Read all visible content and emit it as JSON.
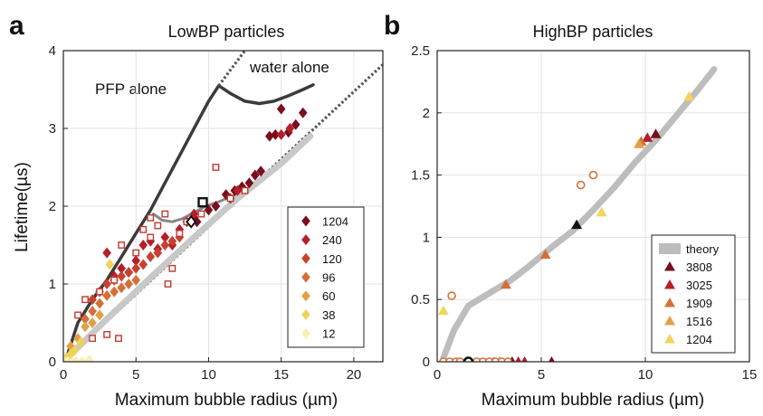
{
  "chart_data": [
    {
      "panel": "a",
      "type": "scatter",
      "title": "LowBP particles",
      "xlabel": "Maximum bubble radius (µm)",
      "ylabel": "Lifetime(µs)",
      "xlim": [
        0,
        22
      ],
      "ylim": [
        0,
        4
      ],
      "xticks": [
        0,
        5,
        10,
        15,
        20
      ],
      "yticks": [
        0,
        1,
        2,
        3,
        4
      ],
      "grid": true,
      "legend_position": "bottom-right",
      "annotations": [
        "PFP alone",
        "water alone"
      ],
      "lines": [
        {
          "name": "PFP alone",
          "style": "solid",
          "color": "#3b3b3b",
          "x": [
            0.3,
            1,
            2,
            3,
            4,
            5,
            6,
            7,
            8,
            9,
            10,
            10.7,
            11.5,
            12.5,
            13.5,
            14.5,
            15.5,
            16.5,
            17.2
          ],
          "y": [
            0.1,
            0.5,
            0.8,
            1.05,
            1.35,
            1.65,
            1.95,
            2.3,
            2.65,
            3.0,
            3.35,
            3.55,
            3.45,
            3.35,
            3.32,
            3.35,
            3.42,
            3.5,
            3.56
          ]
        },
        {
          "name": "PFP alone extrapolation",
          "style": "dotted",
          "color": "#555555",
          "x": [
            10.7,
            12.7
          ],
          "y": [
            3.55,
            4.05
          ]
        },
        {
          "name": "water alone",
          "style": "dotted",
          "color": "#555555",
          "x": [
            0,
            22
          ],
          "y": [
            0,
            3.82
          ]
        },
        {
          "name": "mixture",
          "style": "solid",
          "color": "#888888",
          "x": [
            6.2,
            6.8,
            7.5,
            8.2,
            9.0,
            9.8,
            10.6,
            11.5,
            12.5
          ],
          "y": [
            1.9,
            1.82,
            1.8,
            1.84,
            1.92,
            2.0,
            2.05,
            2.12,
            2.2
          ]
        },
        {
          "name": "theory-low",
          "style": "solid",
          "color": "#c8c8c8",
          "x": [
            0,
            3,
            6,
            9,
            12,
            15,
            17
          ],
          "y": [
            0,
            0.55,
            1.08,
            1.6,
            2.1,
            2.55,
            2.9
          ]
        }
      ],
      "series": [
        {
          "name": "1204",
          "color": "#7a0e1e",
          "marker": "diamond",
          "x": [
            9.0,
            10.5,
            11.2,
            11.8,
            12.3,
            12.8,
            13.2,
            13.6,
            14.2,
            14.6,
            15.0,
            15.5,
            16.0,
            16.5,
            10.0,
            9.2
          ],
          "y": [
            1.85,
            2.0,
            2.15,
            2.2,
            2.25,
            2.3,
            2.4,
            2.45,
            2.9,
            2.92,
            3.25,
            2.95,
            3.05,
            3.2,
            1.95,
            1.8
          ]
        },
        {
          "name": "240",
          "color": "#b51e2a",
          "marker": "diamond",
          "x": [
            3.0,
            3.5,
            4.0,
            4.5,
            5.0,
            5.5,
            6.0,
            6.5,
            7.0,
            7.5,
            8.0,
            8.5,
            9.0,
            11.5,
            12.0,
            15.0,
            15.6
          ],
          "y": [
            1.4,
            1.1,
            1.2,
            1.15,
            1.3,
            1.5,
            1.55,
            1.45,
            1.6,
            1.5,
            1.7,
            1.8,
            1.9,
            2.1,
            2.2,
            2.92,
            3.0
          ]
        },
        {
          "name": "120",
          "color": "#c8412f",
          "marker": "diamond",
          "x": [
            2.0,
            2.5,
            3.0,
            3.5,
            4.0,
            4.5,
            5.0,
            5.5,
            6.0,
            6.5,
            7.0,
            7.5,
            8.0
          ],
          "y": [
            0.8,
            0.9,
            1.0,
            1.05,
            1.1,
            1.15,
            1.2,
            1.25,
            1.35,
            1.4,
            1.5,
            1.55,
            1.6
          ]
        },
        {
          "name": "96",
          "color": "#d3703a",
          "marker": "diamond",
          "x": [
            1.5,
            2.0,
            2.5,
            3.0,
            3.5,
            4.0,
            4.5,
            5.0
          ],
          "y": [
            0.55,
            0.65,
            0.75,
            0.85,
            0.9,
            0.95,
            1.0,
            1.05
          ]
        },
        {
          "name": "60",
          "color": "#e0a047",
          "marker": "diamond",
          "x": [
            0.5,
            1.0,
            1.5,
            2.0,
            2.5
          ],
          "y": [
            0.2,
            0.3,
            0.45,
            0.5,
            0.6
          ]
        },
        {
          "name": "38",
          "color": "#f0d25a",
          "marker": "diamond",
          "x": [
            0.2,
            0.5,
            0.8,
            1.2,
            3.2
          ],
          "y": [
            0.05,
            0.1,
            0.15,
            0.25,
            1.25
          ]
        },
        {
          "name": "12",
          "color": "#f6f0b2",
          "marker": "diamond",
          "x": [
            0.1,
            0.3,
            0.6,
            0.9,
            1.3,
            1.8
          ],
          "y": [
            0.0,
            0.0,
            0.0,
            0.0,
            0.0,
            0.02
          ]
        },
        {
          "name": "open squares",
          "color": "#c0392b",
          "marker": "square-open",
          "x": [
            1.0,
            1.5,
            2.0,
            2.5,
            3.0,
            3.5,
            4.0,
            5.0,
            5.5,
            6.0,
            6.5,
            7.0,
            7.5,
            8.0,
            8.5,
            9.5,
            10.5,
            11.5,
            12.5,
            7.2,
            6.0,
            3.8
          ],
          "y": [
            0.6,
            0.8,
            0.3,
            0.9,
            0.35,
            1.05,
            1.5,
            1.4,
            1.7,
            1.6,
            1.75,
            1.9,
            1.2,
            1.65,
            1.8,
            1.9,
            2.5,
            2.1,
            2.2,
            1.0,
            1.85,
            0.3
          ]
        },
        {
          "name": "highlight square",
          "color": "#111111",
          "marker": "square-bold",
          "x": [
            9.6
          ],
          "y": [
            2.05
          ]
        },
        {
          "name": "highlight diamond",
          "color": "#111111",
          "marker": "diamond-open-black",
          "x": [
            8.8
          ],
          "y": [
            1.8
          ]
        }
      ],
      "legend": [
        "1204",
        "240",
        "120",
        "96",
        "60",
        "38",
        "12"
      ]
    },
    {
      "panel": "b",
      "type": "scatter",
      "title": "HighBP particles",
      "xlabel": "Maximum bubble radius (µm)",
      "ylabel": "",
      "xlim": [
        0,
        15
      ],
      "ylim": [
        0,
        2.5
      ],
      "xticks": [
        0,
        5,
        10,
        15
      ],
      "yticks": [
        0,
        0.5,
        1,
        1.5,
        2,
        2.5
      ],
      "grid": true,
      "legend_position": "bottom-right",
      "lines": [
        {
          "name": "theory",
          "style": "band",
          "color": "#bdbdbd",
          "x": [
            0.3,
            0.8,
            1.5,
            2.5,
            3.5,
            4.5,
            5.5,
            6.5,
            7.5,
            8.5,
            9.5,
            10.5,
            11.5,
            12.5,
            13.3
          ],
          "y": [
            0.03,
            0.25,
            0.45,
            0.55,
            0.65,
            0.78,
            0.92,
            1.05,
            1.22,
            1.4,
            1.6,
            1.78,
            1.98,
            2.18,
            2.35
          ]
        }
      ],
      "series": [
        {
          "name": "3808",
          "color": "#7a0e1e",
          "marker": "triangle",
          "x": [
            3.6,
            5.5,
            10.5
          ],
          "y": [
            0.0,
            0.0,
            1.83
          ]
        },
        {
          "name": "3025",
          "color": "#b51e2a",
          "marker": "triangle",
          "x": [
            3.9,
            4.2,
            10.1
          ],
          "y": [
            0.0,
            0.0,
            1.8
          ]
        },
        {
          "name": "1909",
          "color": "#d3703a",
          "marker": "triangle",
          "x": [
            3.3,
            5.2,
            9.8
          ],
          "y": [
            0.62,
            0.86,
            1.77
          ]
        },
        {
          "name": "1516",
          "color": "#e0a047",
          "marker": "triangle",
          "x": [
            2.7,
            3.0,
            9.7
          ],
          "y": [
            0.0,
            0.0,
            1.75
          ]
        },
        {
          "name": "1204",
          "color": "#f4d35e",
          "marker": "triangle",
          "x": [
            0.3,
            7.9,
            12.1
          ],
          "y": [
            0.41,
            1.2,
            2.13
          ]
        },
        {
          "name": "highlight triangle",
          "color": "#111111",
          "marker": "triangle",
          "x": [
            6.7
          ],
          "y": [
            1.1
          ]
        },
        {
          "name": "open circles",
          "color": "#d3703a",
          "marker": "circle-open",
          "x": [
            0.3,
            0.6,
            0.9,
            1.1,
            1.5,
            1.9,
            2.2,
            2.5,
            2.8,
            3.1,
            3.4,
            0.7,
            6.9,
            7.5
          ],
          "y": [
            0.0,
            0.0,
            0.0,
            0.0,
            0.0,
            0.0,
            0.0,
            0.0,
            0.0,
            0.0,
            0.0,
            0.53,
            1.42,
            1.5
          ]
        },
        {
          "name": "highlight circle",
          "color": "#111111",
          "marker": "circle-bold",
          "x": [
            1.5
          ],
          "y": [
            0.0
          ]
        }
      ],
      "legend": [
        "theory",
        "3808",
        "3025",
        "1909",
        "1516",
        "1204"
      ]
    }
  ],
  "panels": {
    "a": {
      "letter": "a",
      "title": "LowBP particles",
      "xlabel": "Maximum bubble radius (µm)",
      "ylabel": "Lifetime(µs)",
      "label_pfp": "PFP alone",
      "label_water": "water alone"
    },
    "b": {
      "letter": "b",
      "title": "HighBP particles",
      "xlabel": "Maximum bubble radius (µm)"
    }
  },
  "legend_a": [
    {
      "label": "1204",
      "color": "#7a0e1e",
      "marker": "diamond"
    },
    {
      "label": "240",
      "color": "#b51e2a",
      "marker": "diamond"
    },
    {
      "label": "120",
      "color": "#c8412f",
      "marker": "diamond"
    },
    {
      "label": "96",
      "color": "#d3703a",
      "marker": "diamond"
    },
    {
      "label": "60",
      "color": "#e0a047",
      "marker": "diamond"
    },
    {
      "label": "38",
      "color": "#f0d25a",
      "marker": "diamond"
    },
    {
      "label": "12",
      "color": "#f6f0b2",
      "marker": "diamond"
    }
  ],
  "legend_b": [
    {
      "label": "theory",
      "color": "#bdbdbd",
      "marker": "band"
    },
    {
      "label": "3808",
      "color": "#7a0e1e",
      "marker": "triangle"
    },
    {
      "label": "3025",
      "color": "#b51e2a",
      "marker": "triangle"
    },
    {
      "label": "1909",
      "color": "#d3703a",
      "marker": "triangle"
    },
    {
      "label": "1516",
      "color": "#e0a047",
      "marker": "triangle"
    },
    {
      "label": "1204",
      "color": "#f4d35e",
      "marker": "triangle"
    }
  ]
}
